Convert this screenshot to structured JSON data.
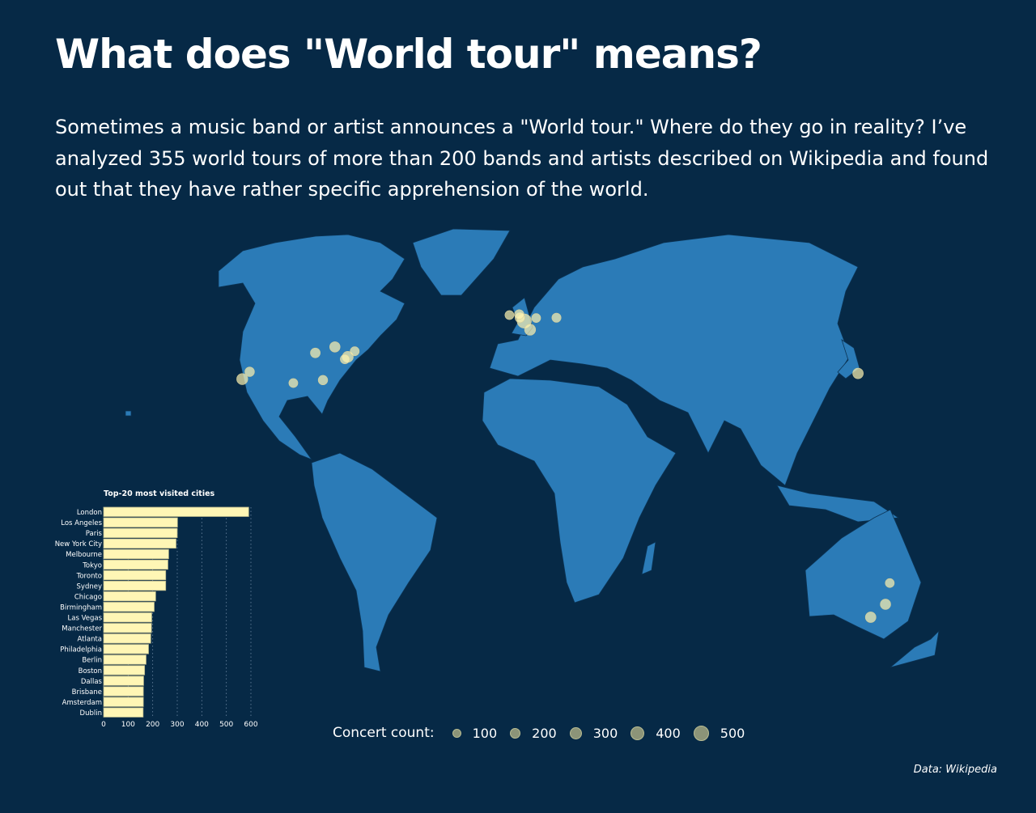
{
  "header": {
    "title": "What does \"World tour\" means?",
    "subtitle": "Sometimes a music band or artist announces a \"World tour.\" Where do they go in reality? I’ve analyzed 355 world tours of more than 200 bands and artists described on Wikipedia and found out that they have rather specific apprehension of the world."
  },
  "colors": {
    "background": "#062946",
    "land": "#2b7bb7",
    "border": "#0b3354",
    "dot": "#fff4b0",
    "bar": "#fff6b5"
  },
  "legend": {
    "label": "Concert count:",
    "items": [
      {
        "value": 100,
        "label": "100"
      },
      {
        "value": 200,
        "label": "200"
      },
      {
        "value": 300,
        "label": "300"
      },
      {
        "value": 400,
        "label": "400"
      },
      {
        "value": 500,
        "label": "500"
      }
    ]
  },
  "source": "Data: Wikipedia",
  "chart_data": [
    {
      "type": "bar",
      "orientation": "horizontal",
      "title": "Top-20 most visited cities",
      "categories": [
        "London",
        "Los Angeles",
        "Paris",
        "New York City",
        "Melbourne",
        "Tokyo",
        "Toronto",
        "Sydney",
        "Chicago",
        "Birmingham",
        "Las Vegas",
        "Manchester",
        "Atlanta",
        "Philadelphia",
        "Berlin",
        "Boston",
        "Dallas",
        "Brisbane",
        "Amsterdam",
        "Dublin"
      ],
      "values": [
        591,
        301,
        300,
        295,
        265,
        262,
        253,
        253,
        212,
        206,
        196,
        195,
        192,
        183,
        173,
        167,
        163,
        162,
        162,
        161
      ],
      "xlim": [
        0,
        600
      ],
      "xticks": [
        "0",
        "100",
        "200",
        "300",
        "400",
        "500",
        "600"
      ],
      "grid": "vertical dotted"
    },
    {
      "type": "scatter",
      "subtype": "bubble map",
      "size_legend": "Concert count",
      "points": [
        {
          "city": "London",
          "lon": -0.1,
          "lat": 51.5,
          "count": 591
        },
        {
          "city": "Los Angeles",
          "lon": -118.2,
          "lat": 34.0,
          "count": 301
        },
        {
          "city": "Paris",
          "lon": 2.35,
          "lat": 48.9,
          "count": 300
        },
        {
          "city": "New York City",
          "lon": -74.0,
          "lat": 40.7,
          "count": 295
        },
        {
          "city": "Melbourne",
          "lon": 145.0,
          "lat": -37.8,
          "count": 265
        },
        {
          "city": "Tokyo",
          "lon": 139.7,
          "lat": 35.7,
          "count": 262
        },
        {
          "city": "Toronto",
          "lon": -79.4,
          "lat": 43.7,
          "count": 253
        },
        {
          "city": "Sydney",
          "lon": 151.2,
          "lat": -33.9,
          "count": 253
        },
        {
          "city": "Chicago",
          "lon": -87.6,
          "lat": 41.9,
          "count": 212
        },
        {
          "city": "Birmingham",
          "lon": -1.9,
          "lat": 52.5,
          "count": 206
        },
        {
          "city": "Las Vegas",
          "lon": -115.1,
          "lat": 36.2,
          "count": 196
        },
        {
          "city": "Manchester",
          "lon": -2.2,
          "lat": 53.5,
          "count": 195
        },
        {
          "city": "Atlanta",
          "lon": -84.4,
          "lat": 33.7,
          "count": 192
        },
        {
          "city": "Philadelphia",
          "lon": -75.2,
          "lat": 40.0,
          "count": 183
        },
        {
          "city": "Berlin",
          "lon": 13.4,
          "lat": 52.5,
          "count": 173
        },
        {
          "city": "Boston",
          "lon": -71.1,
          "lat": 42.4,
          "count": 167
        },
        {
          "city": "Dallas",
          "lon": -96.8,
          "lat": 32.8,
          "count": 163
        },
        {
          "city": "Brisbane",
          "lon": 153.0,
          "lat": -27.5,
          "count": 162
        },
        {
          "city": "Amsterdam",
          "lon": 4.9,
          "lat": 52.4,
          "count": 162
        },
        {
          "city": "Dublin",
          "lon": -6.3,
          "lat": 53.3,
          "count": 161
        }
      ]
    }
  ]
}
